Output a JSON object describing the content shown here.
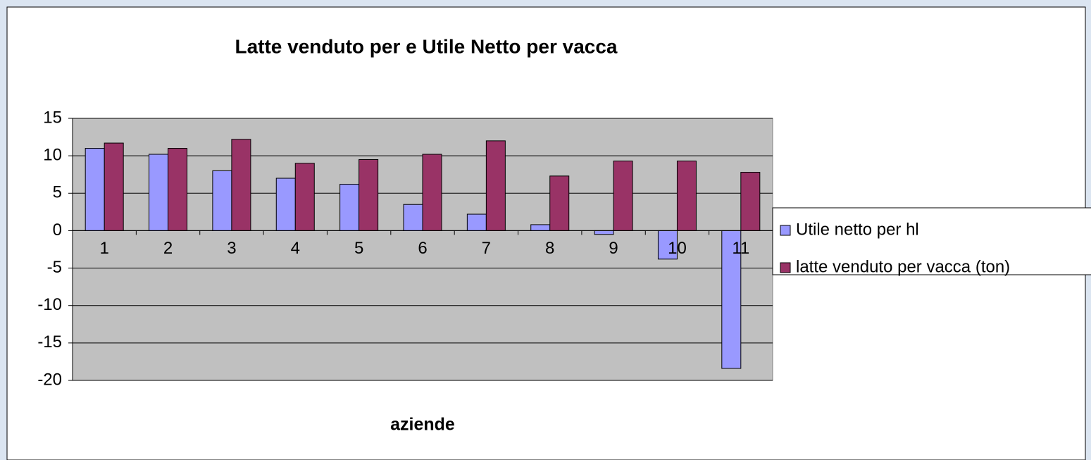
{
  "chart_data": {
    "type": "bar",
    "title": "Latte venduto per  e Utile Netto per vacca",
    "x_label": "aziende",
    "categories": [
      "1",
      "2",
      "3",
      "4",
      "5",
      "6",
      "7",
      "8",
      "9",
      "10",
      "11"
    ],
    "series": [
      {
        "name": "Utile netto per hl",
        "color": "#9999ff",
        "values": [
          11,
          10.2,
          8,
          7,
          6.2,
          3.5,
          2.2,
          0.8,
          -0.5,
          -3.8,
          -18.4
        ]
      },
      {
        "name": "latte venduto per vacca (ton)",
        "color": "#993366",
        "values": [
          11.7,
          11,
          12.2,
          9,
          9.5,
          10.2,
          12,
          7.3,
          9.3,
          9.3,
          7.8
        ]
      }
    ],
    "ylim": [
      -20,
      15
    ],
    "yticks": [
      -20,
      -15,
      -10,
      -5,
      0,
      5,
      10,
      15
    ],
    "grid": true,
    "legend": "right"
  }
}
